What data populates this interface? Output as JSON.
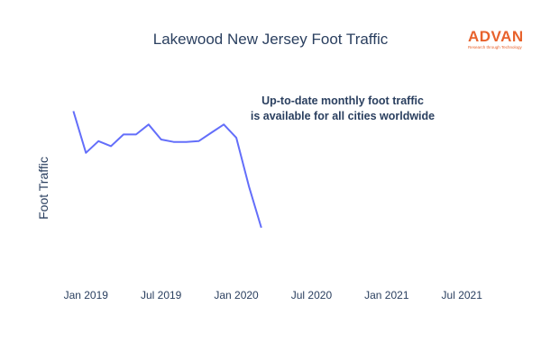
{
  "chart_data": {
    "type": "line",
    "title": "Lakewood New Jersey Foot Traffic",
    "ylabel": "Foot Traffic",
    "xlabel": "",
    "annotation": [
      "Up-to-date monthly foot traffic",
      "is available for all cities worldwide"
    ],
    "x_ticks": [
      {
        "date": "2019-01",
        "label": "Jan 2019"
      },
      {
        "date": "2019-07",
        "label": "Jul 2019"
      },
      {
        "date": "2020-01",
        "label": "Jan 2020"
      },
      {
        "date": "2020-07",
        "label": "Jul 2020"
      },
      {
        "date": "2021-01",
        "label": "Jan 2021"
      },
      {
        "date": "2021-07",
        "label": "Jul 2021"
      }
    ],
    "xlim": [
      "2018-12",
      "2021-09"
    ],
    "y_ticks_visible": false,
    "ylim": [
      0,
      100
    ],
    "grid": false,
    "legend": "none",
    "series": [
      {
        "color": "#636efa",
        "points": [
          {
            "x": "2018-12",
            "y": 90
          },
          {
            "x": "2019-01",
            "y": 65
          },
          {
            "x": "2019-02",
            "y": 72
          },
          {
            "x": "2019-03",
            "y": 69
          },
          {
            "x": "2019-04",
            "y": 76
          },
          {
            "x": "2019-05",
            "y": 76
          },
          {
            "x": "2019-06",
            "y": 82
          },
          {
            "x": "2019-07",
            "y": 73
          },
          {
            "x": "2019-08",
            "y": 71.5
          },
          {
            "x": "2019-09",
            "y": 71.5
          },
          {
            "x": "2019-10",
            "y": 72
          },
          {
            "x": "2019-11",
            "y": 77
          },
          {
            "x": "2019-12",
            "y": 82
          },
          {
            "x": "2020-01",
            "y": 74
          },
          {
            "x": "2020-02",
            "y": 45
          },
          {
            "x": "2020-03",
            "y": 20
          }
        ]
      }
    ]
  },
  "logo": {
    "word": "ADVAN",
    "tagline": "Research through Technology"
  }
}
